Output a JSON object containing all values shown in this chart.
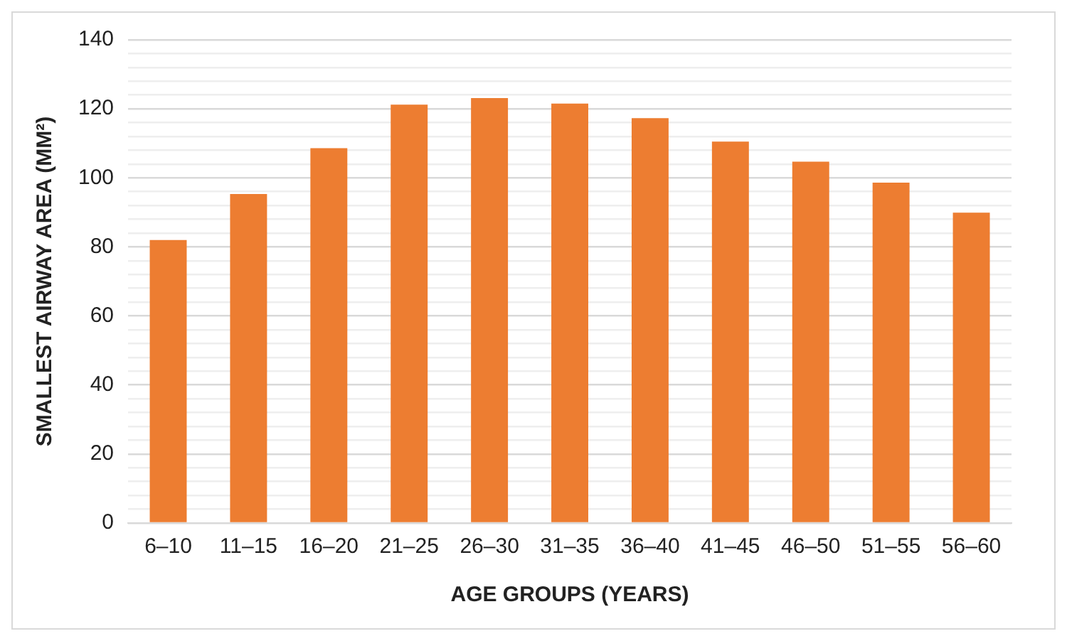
{
  "chart_data": {
    "type": "bar",
    "xlabel": "AGE GROUPS (YEARS)",
    "ylabel": "SMALLEST AIRWAY AREA (MM²)",
    "categories": [
      "6–10",
      "11–15",
      "16–20",
      "21–25",
      "26–30",
      "31–35",
      "36–40",
      "41–45",
      "46–50",
      "51–55",
      "56–60"
    ],
    "values": [
      82,
      95.3,
      108.6,
      121.2,
      123.1,
      121.5,
      117.3,
      110.5,
      104.7,
      98.6,
      89.9
    ],
    "color": "#ed7d31",
    "ylim": [
      0,
      140
    ],
    "yticks": [
      0,
      {
        "value": 4,
        "label": null
      },
      {
        "value": 8,
        "label": null
      },
      {
        "value": 12,
        "label": null
      },
      {
        "value": 16,
        "label": null
      },
      20,
      {
        "value": 24,
        "label": null
      },
      {
        "value": 28,
        "label": null
      },
      {
        "value": 32,
        "label": null
      },
      {
        "value": 36,
        "label": null
      },
      40,
      {
        "value": 44,
        "label": null
      },
      {
        "value": 48,
        "label": null
      },
      {
        "value": 52,
        "label": null
      },
      {
        "value": 56,
        "label": null
      },
      60,
      {
        "value": 64,
        "label": null
      },
      {
        "value": 68,
        "label": null
      },
      {
        "value": 72,
        "label": null
      },
      {
        "value": 76,
        "label": null
      },
      80,
      {
        "value": 84,
        "label": null
      },
      {
        "value": 88,
        "label": null
      },
      {
        "value": 92,
        "label": null
      },
      {
        "value": 96,
        "label": null
      },
      100,
      {
        "value": 104,
        "label": null
      },
      {
        "value": 108,
        "label": null
      },
      {
        "value": 112,
        "label": null
      },
      {
        "value": 116,
        "label": null
      },
      120,
      {
        "value": 124,
        "label": null
      },
      {
        "value": 128,
        "label": null
      },
      {
        "value": 132,
        "label": null
      },
      {
        "value": 136,
        "label": null
      },
      140
    ],
    "grid": "y",
    "legend": false
  }
}
